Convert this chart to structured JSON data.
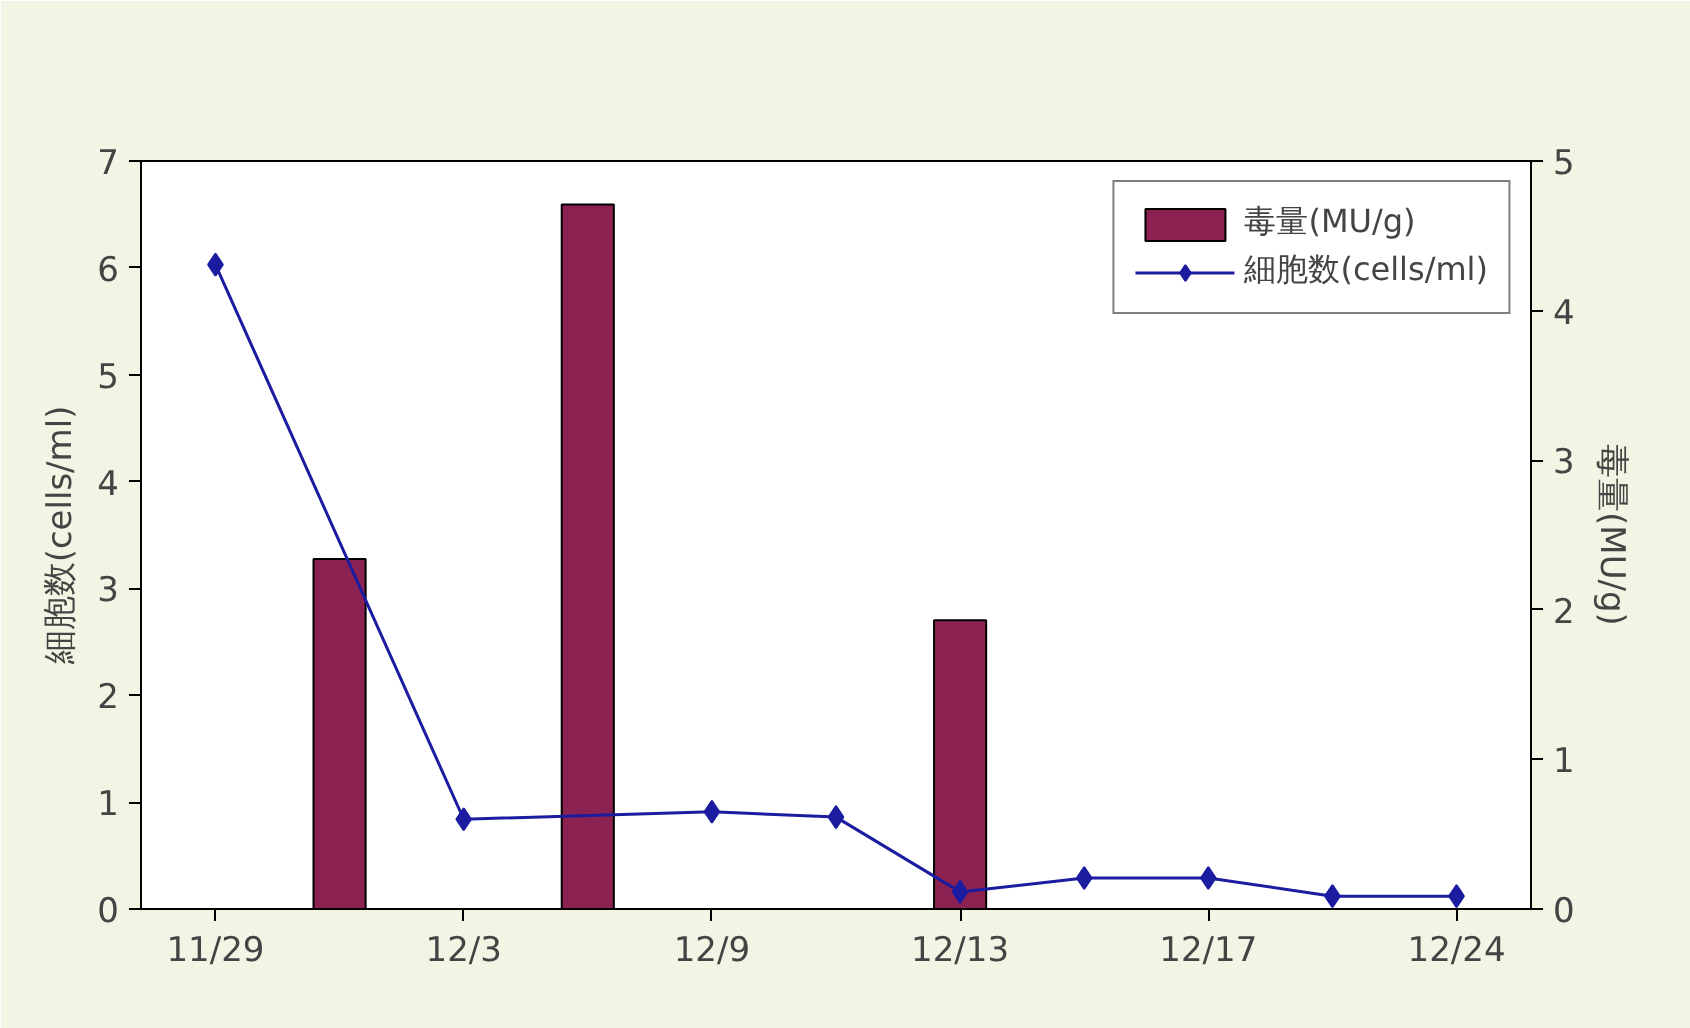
{
  "chart_data": {
    "type": "bar",
    "categories": [
      "11/29",
      null,
      "12/3",
      null,
      "12/9",
      null,
      "12/13",
      null,
      "12/17",
      null,
      "12/24"
    ],
    "ylabel": "細胞数(cells/ml)",
    "y2label": "毒量(MU/g)",
    "ylim": [
      0,
      7
    ],
    "yticks": [
      0,
      1,
      2,
      3,
      4,
      5,
      6,
      7
    ],
    "y2lim": [
      0,
      5
    ],
    "y2ticks": [
      0,
      1,
      2,
      3,
      4,
      5
    ],
    "series": [
      {
        "name": "毒量(MU/g)",
        "axis": "y2",
        "color": "#8b2252",
        "values": [
          null,
          2.34,
          null,
          4.71,
          null,
          null,
          1.93,
          null,
          null,
          null,
          null
        ]
      },
      {
        "name": "細胞数(cells/ml)",
        "type": "line",
        "axis": "y",
        "color": "#1c1ca0",
        "marker": "diamond",
        "line_style": "solid",
        "values": [
          6.03,
          null,
          0.84,
          null,
          0.91,
          0.86,
          0.16,
          0.29,
          0.29,
          0.12,
          0.12
        ]
      }
    ],
    "legend": "top right",
    "grid": false
  }
}
